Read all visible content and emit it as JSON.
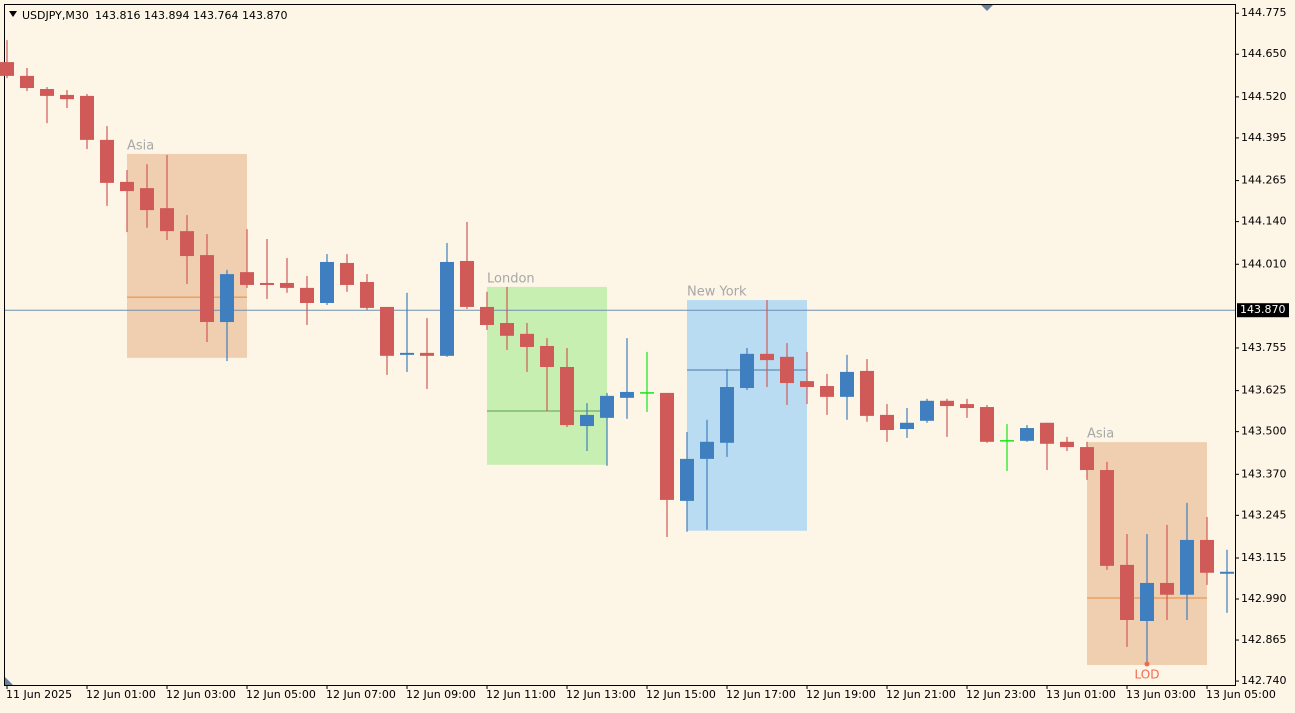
{
  "chart_data": {
    "type": "candlestick",
    "symbol": "USDJPY,M30",
    "quote": "143.816 143.894 143.764 143.870",
    "categories": [
      "11 Jun 2025",
      null,
      null,
      null,
      "12 Jun 01:00",
      null,
      null,
      null,
      "12 Jun 03:00",
      null,
      null,
      null,
      "12 Jun 05:00",
      null,
      null,
      null,
      "12 Jun 07:00",
      null,
      null,
      null,
      "12 Jun 09:00",
      null,
      null,
      null,
      "12 Jun 11:00",
      null,
      null,
      null,
      "12 Jun 13:00",
      null,
      null,
      null,
      "12 Jun 15:00",
      null,
      null,
      null,
      "12 Jun 17:00",
      null,
      null,
      null,
      "12 Jun 19:00",
      null,
      null,
      null,
      "12 Jun 21:00",
      null,
      null,
      null,
      "12 Jun 23:00",
      null,
      null,
      null,
      "13 Jun 01:00",
      null,
      null,
      null,
      "13 Jun 03:00",
      null,
      null,
      null,
      "13 Jun 05:00",
      null
    ],
    "open": [
      144.626,
      144.584,
      144.544,
      144.526,
      144.523,
      144.389,
      144.261,
      144.242,
      144.181,
      144.111,
      144.038,
      143.834,
      143.986,
      143.953,
      143.953,
      143.938,
      143.892,
      144.014,
      143.956,
      143.88,
      143.734,
      143.74,
      143.731,
      144.02,
      143.88,
      143.831,
      143.798,
      143.761,
      143.697,
      143.517,
      143.542,
      143.603,
      143.618,
      143.618,
      143.289,
      143.417,
      143.466,
      143.633,
      143.737,
      143.728,
      143.654,
      143.639,
      143.606,
      143.685,
      143.551,
      143.508,
      143.533,
      143.594,
      143.584,
      143.575,
      143.472,
      143.472,
      143.527,
      143.469,
      143.453,
      143.383,
      143.094,
      142.923,
      143.039,
      143.003,
      143.17,
      143.07
    ],
    "high": [
      144.693,
      144.608,
      144.55,
      144.541,
      144.529,
      144.431,
      144.297,
      144.315,
      144.343,
      144.16,
      144.102,
      143.993,
      144.117,
      144.087,
      144.029,
      143.974,
      144.041,
      144.041,
      143.98,
      143.88,
      143.923,
      143.846,
      144.075,
      144.139,
      143.926,
      143.941,
      143.831,
      143.785,
      143.755,
      143.587,
      143.618,
      143.785,
      143.743,
      143.618,
      143.499,
      143.536,
      143.691,
      143.755,
      143.901,
      143.77,
      143.743,
      143.676,
      143.734,
      143.721,
      143.584,
      143.572,
      143.6,
      143.6,
      143.6,
      143.581,
      143.523,
      143.52,
      143.527,
      143.484,
      143.469,
      143.408,
      143.188,
      143.188,
      143.216,
      143.283,
      143.24,
      143.14
    ],
    "low": [
      144.577,
      144.538,
      144.44,
      144.486,
      144.361,
      144.188,
      144.108,
      144.121,
      144.084,
      143.95,
      143.773,
      143.715,
      143.938,
      143.904,
      143.923,
      143.825,
      143.886,
      143.926,
      143.871,
      143.673,
      143.682,
      143.63,
      143.728,
      143.874,
      143.81,
      143.749,
      143.682,
      143.563,
      143.514,
      143.441,
      143.396,
      143.539,
      143.56,
      143.179,
      143.195,
      143.201,
      143.423,
      143.627,
      143.636,
      143.581,
      143.584,
      143.551,
      143.536,
      143.53,
      143.469,
      143.481,
      143.527,
      143.484,
      143.542,
      143.466,
      143.38,
      143.469,
      143.383,
      143.441,
      143.353,
      143.079,
      142.844,
      142.792,
      142.926,
      142.926,
      143.033,
      142.948
    ],
    "close": [
      144.584,
      144.547,
      144.523,
      144.513,
      144.389,
      144.258,
      144.233,
      144.175,
      144.111,
      144.035,
      143.834,
      143.98,
      143.947,
      143.947,
      143.938,
      143.892,
      144.017,
      143.947,
      143.877,
      143.731,
      143.74,
      143.731,
      144.017,
      143.88,
      143.825,
      143.792,
      143.758,
      143.697,
      143.52,
      143.551,
      143.609,
      143.621,
      143.618,
      143.292,
      143.417,
      143.469,
      143.636,
      143.737,
      143.718,
      143.648,
      143.636,
      143.606,
      143.682,
      143.548,
      143.505,
      143.527,
      143.594,
      143.578,
      143.572,
      143.469,
      143.472,
      143.511,
      143.463,
      143.453,
      143.383,
      143.091,
      142.926,
      143.039,
      143.003,
      143.17,
      143.07,
      143.073
    ],
    "up_color": "#3f7fbf",
    "down_color": "#d05a58",
    "doji_color": "#19e619",
    "ylim": [
      142.728,
      144.8
    ],
    "yticks": [
      {
        "value": 142.74,
        "label": "142.740"
      },
      142.865,
      {
        "value": 142.99,
        "label": "142.990"
      },
      143.115,
      143.245,
      {
        "value": 143.37,
        "label": "143.370"
      },
      {
        "value": 143.5,
        "label": "143.500"
      },
      143.625,
      143.755,
      {
        "value": 144.01,
        "label": "144.010"
      },
      {
        "value": 144.14,
        "label": "144.140"
      },
      144.265,
      144.395,
      {
        "value": 144.52,
        "label": "144.520"
      },
      {
        "value": 144.65,
        "label": "144.650"
      },
      144.775
    ],
    "price_line": {
      "value": 143.87,
      "label": "143.870",
      "color": "#6f8faf"
    },
    "sessions": [
      {
        "name": "Asia",
        "start": 6,
        "end": 12,
        "high": 144.346,
        "low": 143.725,
        "mid": 143.91,
        "color": "#f0cfb0",
        "line_color": "#e8883a"
      },
      {
        "name": "London",
        "start": 24,
        "end": 30,
        "high": 143.941,
        "low": 143.399,
        "mid": 143.563,
        "color": "#c8efb2",
        "line_color": "#5a9f4a"
      },
      {
        "name": "New York",
        "start": 34,
        "end": 40,
        "high": 143.901,
        "low": 143.198,
        "mid": 143.688,
        "color": "#b9dcf2",
        "line_color": "#4a78b0"
      },
      {
        "name": "Asia",
        "start": 54,
        "end": 60,
        "high": 143.468,
        "low": 142.789,
        "mid": 142.993,
        "color": "#f0cfb0",
        "line_color": "#e8883a"
      }
    ],
    "lod": {
      "label": "LOD",
      "index": 57,
      "value": 142.792,
      "color": "#f06a50"
    }
  }
}
